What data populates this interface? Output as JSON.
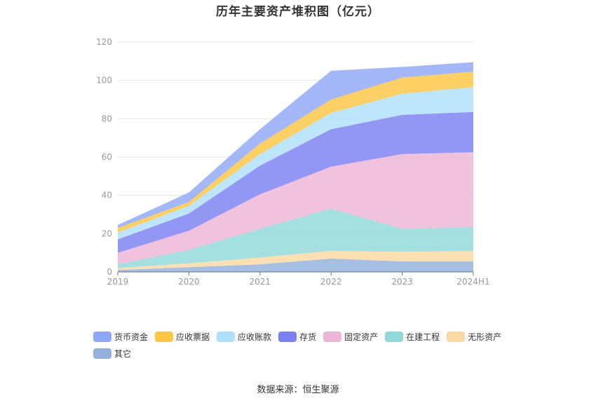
{
  "title": "历年主要资产堆积图（亿元）",
  "source": "数据来源：恒生聚源",
  "chart_data": {
    "type": "area",
    "stacked": true,
    "title": "历年主要资产堆积图（亿元）",
    "x": [
      "2019",
      "2020",
      "2021",
      "2022",
      "2023",
      "2024H1"
    ],
    "ylim": [
      0,
      120
    ],
    "yticks": [
      0,
      20,
      40,
      60,
      80,
      100,
      120
    ],
    "grid": true,
    "legend_position": "bottom-left",
    "series": [
      {
        "name": "其它",
        "color": "#93b1dc",
        "values": [
          1.0,
          2.5,
          4.0,
          7.0,
          5.5,
          5.5
        ]
      },
      {
        "name": "无形资产",
        "color": "#fbd9a4",
        "values": [
          1.0,
          2.0,
          3.5,
          4.0,
          5.0,
          5.5
        ]
      },
      {
        "name": "在建工程",
        "color": "#8fd9d8",
        "values": [
          2.0,
          7.0,
          15.0,
          22.0,
          12.0,
          12.5
        ]
      },
      {
        "name": "固定资产",
        "color": "#eeb5d7",
        "values": [
          6.0,
          10.0,
          18.0,
          22.0,
          39.0,
          39.0
        ]
      },
      {
        "name": "存货",
        "color": "#7a80f2",
        "values": [
          7.0,
          9.0,
          15.0,
          19.5,
          20.5,
          21.0
        ]
      },
      {
        "name": "应收账款",
        "color": "#aee0f9",
        "values": [
          3.5,
          4.0,
          6.0,
          8.5,
          11.0,
          13.0
        ]
      },
      {
        "name": "应收票据",
        "color": "#fdc644",
        "values": [
          2.5,
          2.0,
          5.5,
          7.0,
          8.5,
          8.0
        ]
      },
      {
        "name": "货币资金",
        "color": "#8fa7f8",
        "values": [
          1.5,
          5.0,
          7.5,
          15.0,
          5.5,
          5.0
        ]
      }
    ]
  },
  "legend_order": [
    "货币资金",
    "应收票据",
    "应收账款",
    "存货",
    "固定资产",
    "在建工程",
    "无形资产",
    "其它"
  ]
}
